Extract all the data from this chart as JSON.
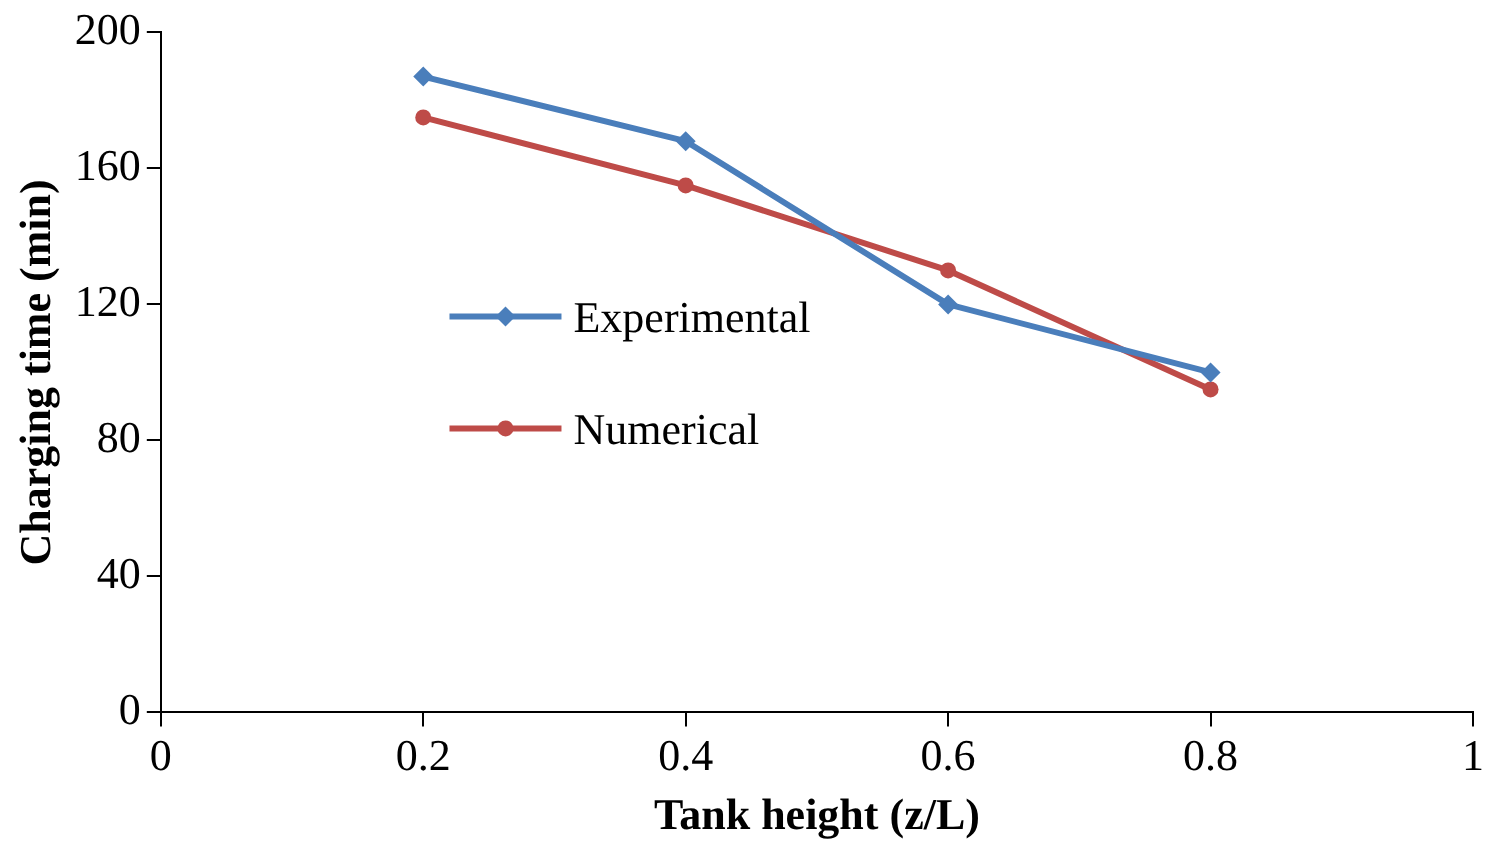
{
  "chart_data": {
    "type": "line",
    "xlabel": "Tank height (z/L)",
    "ylabel": "Charging time (min)",
    "x": [
      0.2,
      0.4,
      0.6,
      0.8
    ],
    "series": [
      {
        "name": "Experimental",
        "color": "#4a7ebb",
        "marker": "diamond",
        "values": [
          187,
          168,
          120,
          100
        ]
      },
      {
        "name": "Numerical",
        "color": "#be4b48",
        "marker": "circle",
        "values": [
          175,
          155,
          130,
          95
        ]
      }
    ],
    "xlim": [
      0,
      1
    ],
    "xticks": [
      0,
      0.2,
      0.4,
      0.6,
      0.8,
      1
    ],
    "ylim": [
      0,
      200
    ],
    "yticks": [
      0,
      40,
      80,
      120,
      160,
      200
    ],
    "grid": false,
    "legend": "left",
    "line_style": "solid"
  }
}
